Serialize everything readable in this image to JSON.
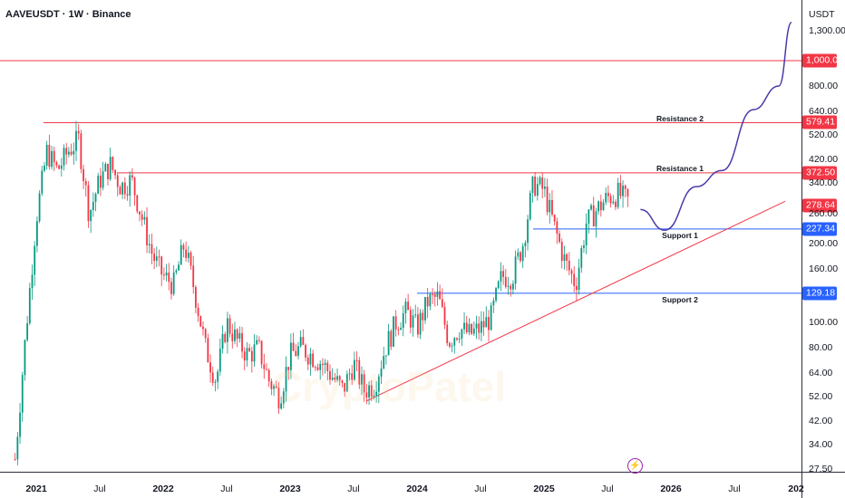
{
  "header": {
    "title": "AAVEUSDT · 1W · Binance"
  },
  "watermark": "CryptoPatel",
  "chart_data": {
    "type": "candlestick",
    "symbol": "AAVEUSDT",
    "interval": "1W",
    "exchange": "Binance",
    "y_unit": "USDT",
    "y_scale": "log",
    "ylim": [
      27.5,
      1300
    ],
    "y_ticks": [
      "1,300.00",
      "800.00",
      "640.00",
      "520.00",
      "420.00",
      "340.00",
      "260.00",
      "200.00",
      "160.00",
      "100.00",
      "80.00",
      "64.00",
      "52.00",
      "42.00",
      "34.00",
      "27.50"
    ],
    "y_tick_values": [
      1300,
      800,
      640,
      520,
      420,
      340,
      260,
      200,
      160,
      100,
      80,
      64,
      52,
      42,
      34,
      27.5
    ],
    "x_ticks": [
      {
        "label": "2021",
        "t": 2021.0,
        "year": true
      },
      {
        "label": "Jul",
        "t": 2021.5
      },
      {
        "label": "2022",
        "t": 2022.0,
        "year": true
      },
      {
        "label": "Jul",
        "t": 2022.5
      },
      {
        "label": "2023",
        "t": 2023.0,
        "year": true
      },
      {
        "label": "Jul",
        "t": 2023.5
      },
      {
        "label": "2024",
        "t": 2024.0,
        "year": true
      },
      {
        "label": "Jul",
        "t": 2024.5
      },
      {
        "label": "2025",
        "t": 2025.0,
        "year": true
      },
      {
        "label": "Jul",
        "t": 2025.5
      },
      {
        "label": "2026",
        "t": 2026.0,
        "year": true
      },
      {
        "label": "Jul",
        "t": 2026.5
      },
      {
        "label": "202",
        "t": 2027.0,
        "year": true
      }
    ],
    "approx_monthly_closes": {
      "start": "2020-11",
      "values": [
        30,
        90,
        250,
        450,
        380,
        450,
        500,
        260,
        350,
        400,
        330,
        350,
        250,
        180,
        150,
        140,
        200,
        130,
        80,
        60,
        100,
        85,
        75,
        80,
        60,
        52,
        75,
        80,
        75,
        70,
        62,
        55,
        70,
        55,
        58,
        80,
        100,
        110,
        95,
        120,
        125,
        85,
        95,
        90,
        95,
        105,
        150,
        150,
        200,
        340,
        320,
        230,
        170,
        140,
        240,
        270,
        300,
        310,
        290
      ]
    },
    "last_price": {
      "label": "278.64",
      "value": 278.64,
      "color": "#f23645"
    },
    "levels": [
      {
        "value": 1000,
        "label": "1,000.00",
        "color": "#f23645",
        "name": ""
      },
      {
        "value": 579.41,
        "label": "579.41",
        "color": "#f23645",
        "name": "Resistance 2"
      },
      {
        "value": 372.5,
        "label": "372.50",
        "color": "#f23645",
        "name": "Resistance 1"
      },
      {
        "value": 227.34,
        "label": "227.34",
        "color": "#2962ff",
        "name": "Support 1"
      },
      {
        "value": 129.18,
        "label": "129.18",
        "color": "#2962ff",
        "name": "Support 2"
      }
    ],
    "trendline": {
      "from": {
        "t": 2023.6,
        "p": 50
      },
      "to": {
        "t": 2026.9,
        "p": 290
      },
      "color": "#f23645"
    },
    "projection": {
      "color": "#4a3aa8",
      "points": [
        {
          "t": 2025.76,
          "p": 270
        },
        {
          "t": 2025.95,
          "p": 225
        },
        {
          "t": 2026.2,
          "p": 330
        },
        {
          "t": 2026.4,
          "p": 380
        },
        {
          "t": 2026.65,
          "p": 650
        },
        {
          "t": 2026.85,
          "p": 800
        },
        {
          "t": 2026.95,
          "p": 1400
        }
      ]
    },
    "up_color": "#089981",
    "down_color": "#f23645"
  }
}
